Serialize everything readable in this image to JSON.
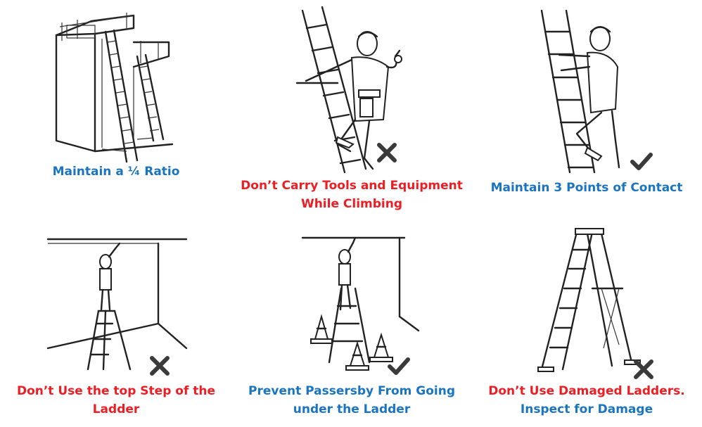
{
  "panels": [
    {
      "caption_lines": [
        "Maintain a ¼ Ratio"
      ],
      "caption_color": "#1b74c0",
      "mark": "none",
      "scene": "extension ladders against building"
    },
    {
      "caption_lines": [
        "Don’t Carry Tools and Equipment",
        "While Climbing"
      ],
      "caption_color": "#ee1d24",
      "mark": "cross",
      "scene": "climber holding tools"
    },
    {
      "caption_lines": [
        "Maintain 3 Points of Contact"
      ],
      "caption_color": "#1b74c0",
      "mark": "check",
      "scene": "climber gripping ladder"
    },
    {
      "caption_lines": [
        "Don’t Use the top Step of the",
        "Ladder"
      ],
      "caption_color": "#ee1d24",
      "mark": "cross",
      "scene": "person standing on top step"
    },
    {
      "caption_lines": [
        "Prevent Passersby From Going",
        "under the Ladder"
      ],
      "caption_color": "#1b74c0",
      "mark": "check",
      "scene": "ladder with traffic cones"
    },
    {
      "caption_lines": [
        "Don’t Use Damaged Ladders.",
        "Inspect for Damage"
      ],
      "caption_colors": [
        "#ee1d24",
        "#1b74c0"
      ],
      "mark": "cross",
      "scene": "damaged step ladder"
    }
  ],
  "marks": {
    "cross_icon": "cross-icon",
    "check_icon": "check-icon"
  }
}
